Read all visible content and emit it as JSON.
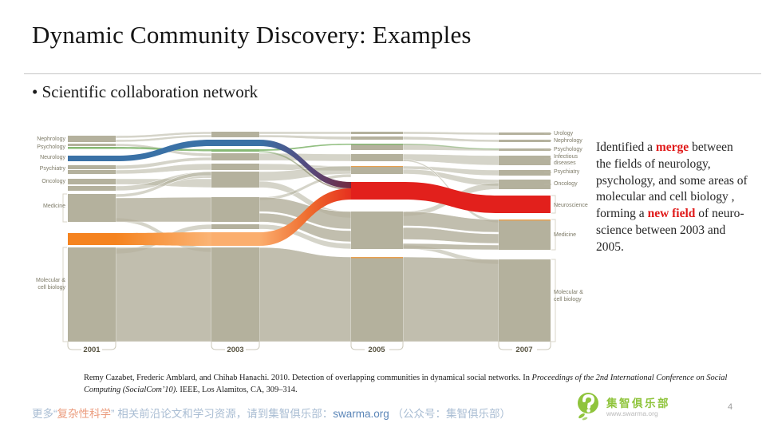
{
  "slide": {
    "title": "Dynamic Community Discovery: Examples",
    "bullet": "• Scientific collaboration network",
    "page_number": "4"
  },
  "diagram": {
    "years": [
      "2001",
      "2003",
      "2005",
      "2007"
    ],
    "left_labels": [
      "Nephrology",
      "Psychology",
      "Neurology",
      "Psychiatry",
      "Oncology",
      "Medicine",
      "Molecular &\ncell biology"
    ],
    "right_labels": [
      "Urology",
      "Nephrology",
      "Psychology",
      "Infectious\ndiseases",
      "Psychiatry",
      "Oncology",
      "Neuroscience",
      "Medicine",
      "Molecular &\ncell biology"
    ]
  },
  "chart_data": {
    "type": "alluvial",
    "title": "Scientific collaboration network — community evolution over time",
    "timepoints": [
      "2001",
      "2003",
      "2005",
      "2007"
    ],
    "categories_left_2001": [
      "Nephrology",
      "Psychology",
      "Neurology",
      "Psychiatry",
      "Oncology",
      "Medicine",
      "Molecular & cell biology"
    ],
    "categories_right_2007": [
      "Urology",
      "Nephrology",
      "Psychology",
      "Infectious diseases",
      "Psychiatry",
      "Oncology",
      "Neuroscience",
      "Medicine",
      "Molecular & cell biology"
    ],
    "highlighted_flows": [
      {
        "name": "Neurology",
        "color": "#3a71a6",
        "note": "blue stream, dives down after 2003 into the merge"
      },
      {
        "name": "Psychology",
        "color": "#86b873",
        "note": "thin green stream, partly joins the merge"
      },
      {
        "name": "Molecular & cell biology (part)",
        "color": "#f5831f",
        "note": "orange stream, rises after 2003 into the merge"
      },
      {
        "name": "Neuroscience",
        "color": "#e2201c",
        "note": "new red community formed at 2005, persists to 2007"
      }
    ],
    "base_color": "#b4b19d",
    "legend_position": "none",
    "grid": false
  },
  "annotation": {
    "segments": [
      {
        "text": "Identified a "
      },
      {
        "text": "merge",
        "cls": "red"
      },
      {
        "text": " between the fields of neurology, psychology, and some areas of molecular and cell biology , forming a "
      },
      {
        "text": "new field",
        "cls": "red"
      },
      {
        "text": " of neuro-science between 2003 and 2005."
      }
    ]
  },
  "citation": {
    "segments": [
      {
        "text": "Remy Cazabet, Frederic Amblard, and Chihab Hanachi. 2010. Detection of overlapping communities in dynamical social networks. In "
      },
      {
        "text": "Proceedings of the 2nd International Conference on Social Computing (SocialCom’10)",
        "cls": "italic"
      },
      {
        "text": ". IEEE, Los Alamitos, CA, 309–314."
      }
    ]
  },
  "footer": {
    "segments": [
      {
        "text": "更多“"
      },
      {
        "text": "复杂性科学",
        "cls": "accent"
      },
      {
        "text": "” 相关前沿论文和学习资源，请到集智俱乐部："
      },
      {
        "text": "swarma.org",
        "cls": "link"
      },
      {
        "text": " （公众号：集智俱乐部）"
      }
    ]
  },
  "logo": {
    "name": "集智俱乐部",
    "url": "www.swarma.org"
  }
}
